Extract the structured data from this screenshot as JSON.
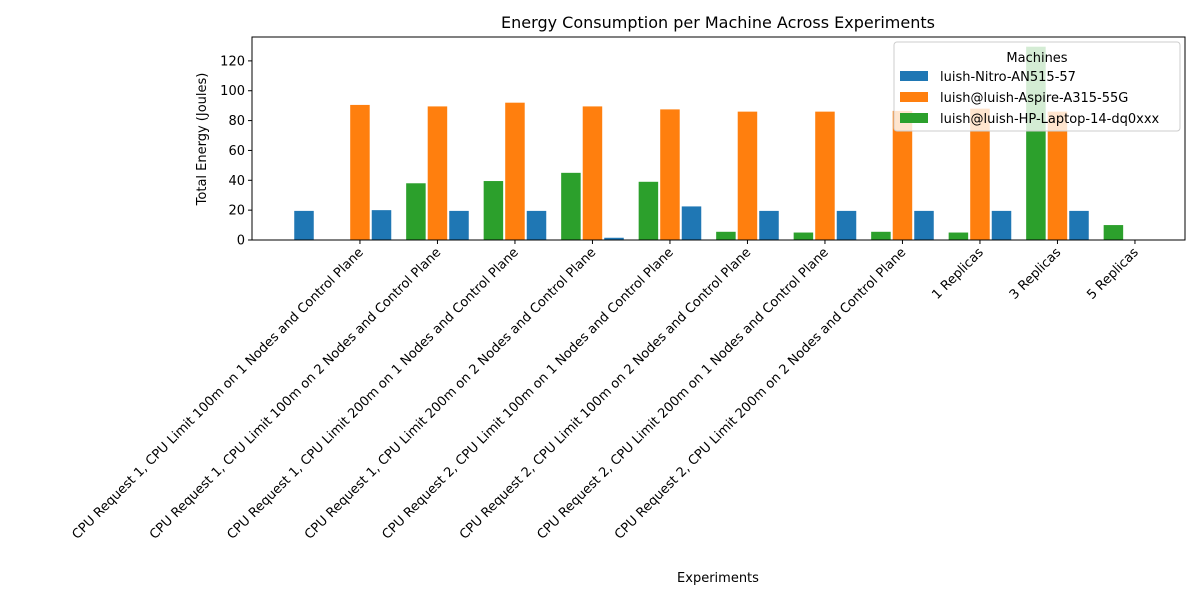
{
  "chart_data": {
    "type": "bar",
    "title": "Energy Consumption per Machine Across Experiments",
    "xlabel": "Experiments",
    "ylabel": "Total Energy (Joules)",
    "ylim": [
      0,
      136
    ],
    "yticks": [
      0,
      20,
      40,
      60,
      80,
      100,
      120
    ],
    "grid": false,
    "legend_title": "Machines",
    "legend_position": "top-right",
    "categories": [
      "CPU Request 1, CPU Limit 100m on 1 Nodes and Control Plane",
      "CPU Request 1, CPU Limit 100m on 2 Nodes and Control Plane",
      "CPU Request 1, CPU Limit 200m on 1 Nodes and Control Plane",
      "CPU Request 1, CPU Limit 200m on 2 Nodes and Control Plane",
      "CPU Request 2, CPU Limit 100m on 1 Nodes and Control Plane",
      "CPU Request 2, CPU Limit 100m on 2 Nodes and Control Plane",
      "CPU Request 2, CPU Limit 200m on 1 Nodes and Control Plane",
      "CPU Request 2, CPU Limit 200m on 2 Nodes and Control Plane",
      "1 Replicas",
      "3 Replicas",
      "5 Replicas"
    ],
    "series": [
      {
        "name": "luish-Nitro-AN515-57",
        "color": "#1f77b4",
        "values": [
          19.5,
          20,
          19.5,
          19.5,
          1.5,
          22.5,
          19.5,
          19.5,
          19.5,
          19.5,
          19.5
        ]
      },
      {
        "name": "luish@luish-Aspire-A315-55G",
        "color": "#ff7f0e",
        "values": [
          90.5,
          89.5,
          92,
          89.5,
          87.5,
          86,
          86,
          86.5,
          88,
          86,
          null
        ]
      },
      {
        "name": "luish@luish-HP-Laptop-14-dq0xxx",
        "color": "#2ca02c",
        "values": [
          38,
          39.5,
          45,
          39,
          5.5,
          5,
          5.5,
          5,
          129.5,
          10,
          null
        ]
      }
    ]
  }
}
